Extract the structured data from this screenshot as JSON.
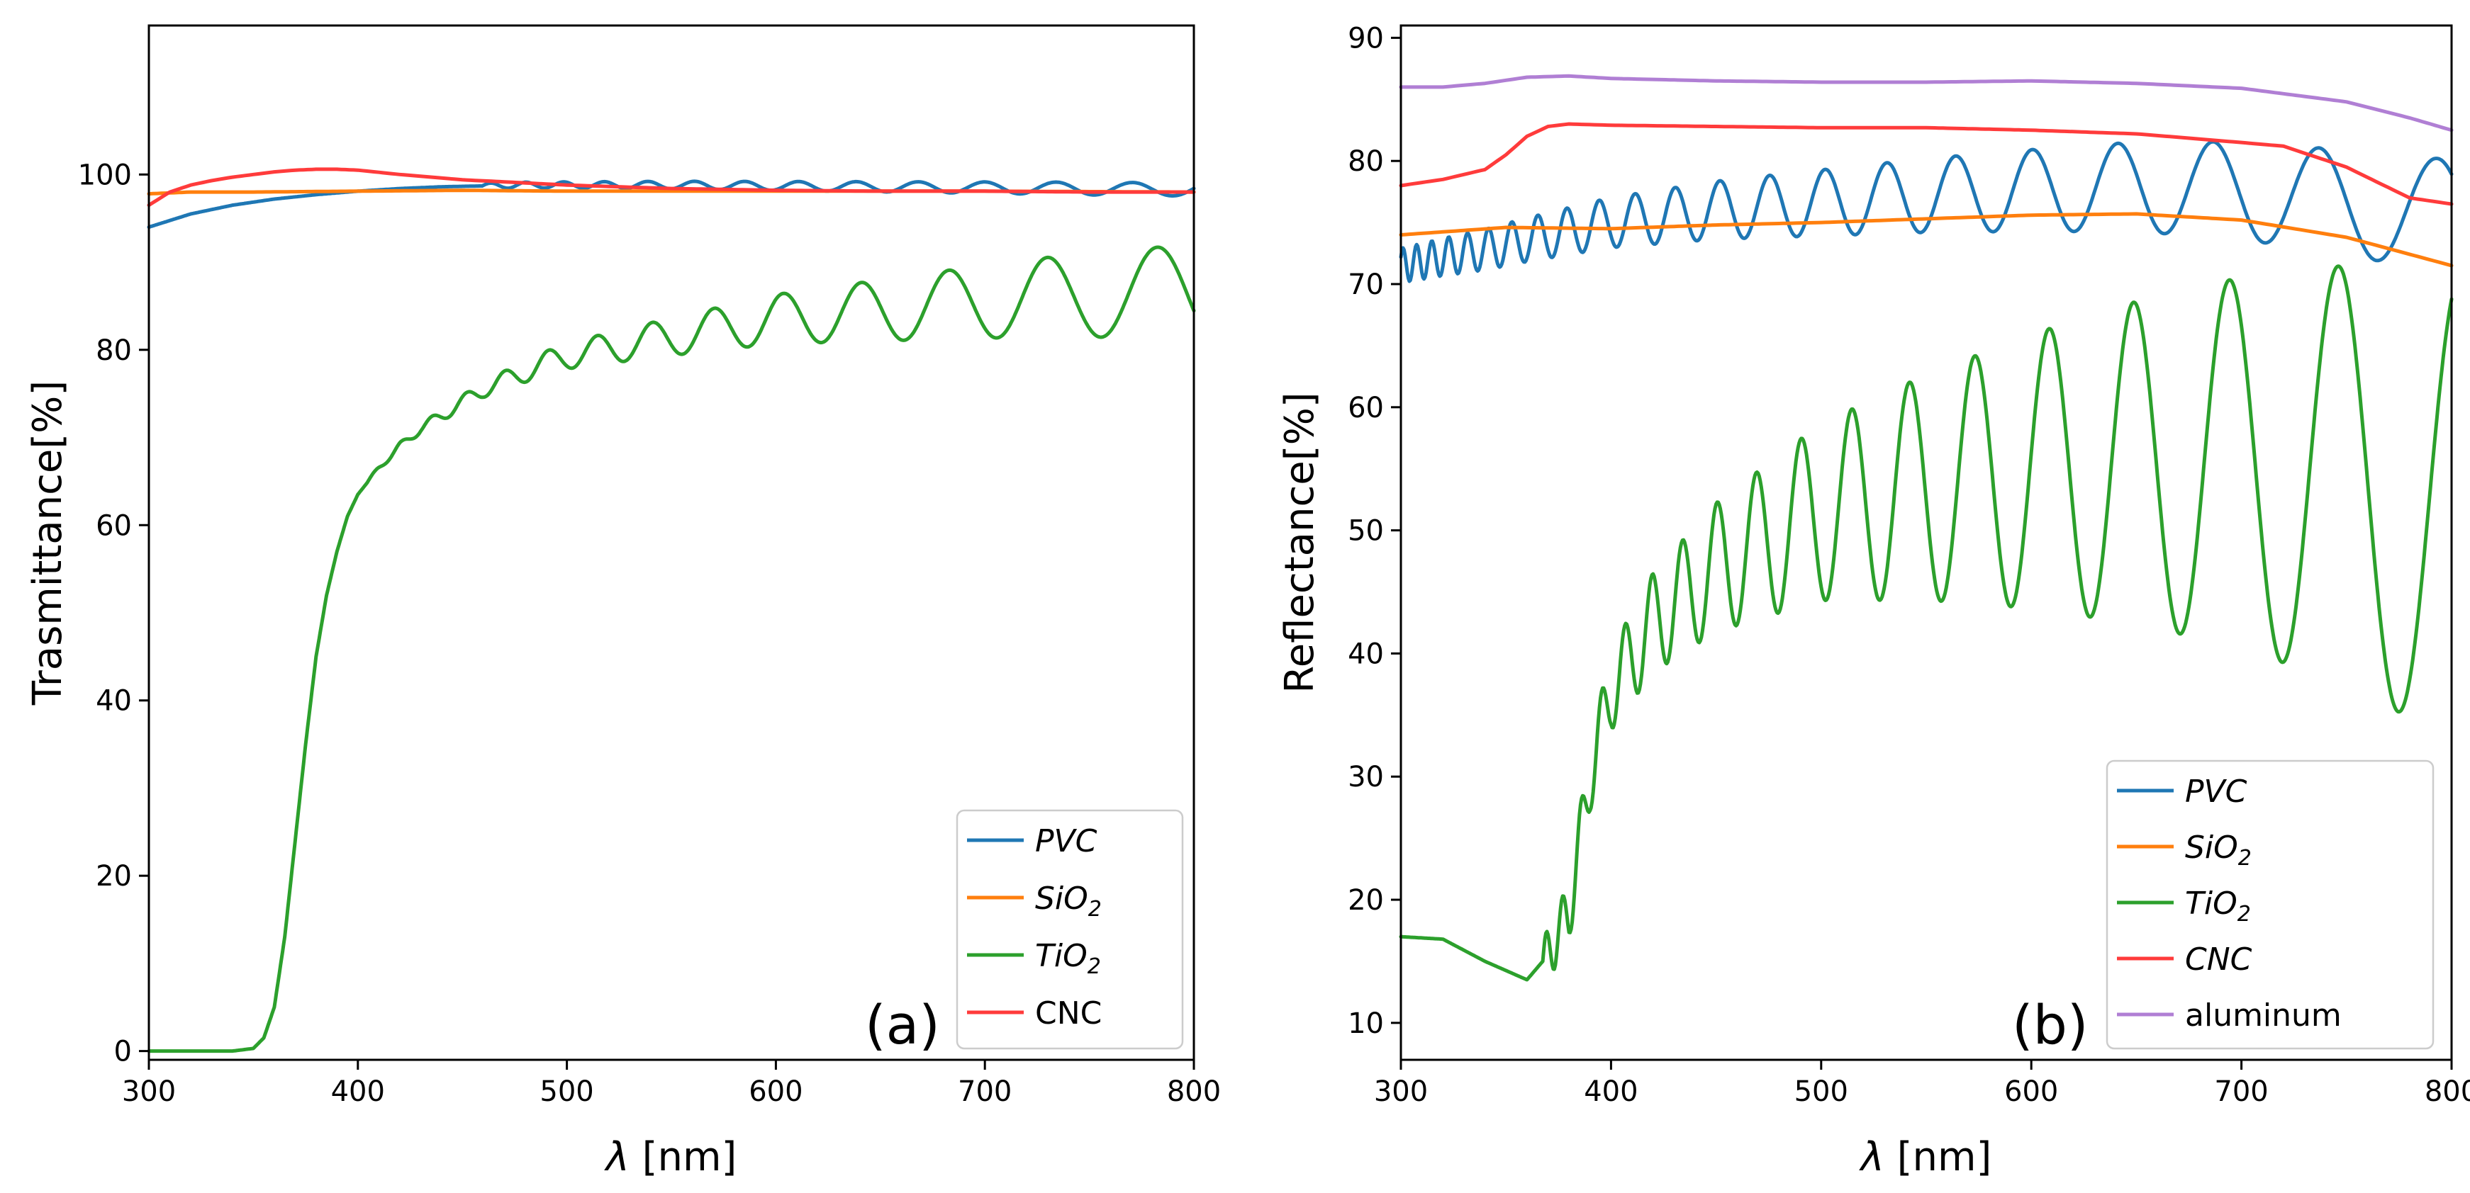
{
  "chart_data": [
    {
      "type": "line",
      "panel_label": "(a)",
      "xlabel_symbol": "λ",
      "xlabel_unit": " [nm]",
      "ylabel": "Trasmittance[%]",
      "xlim": [
        300,
        800
      ],
      "ylim": [
        -1,
        117
      ],
      "xticks": [
        "300",
        "400",
        "500",
        "600",
        "700",
        "800"
      ],
      "yticks": [
        "0",
        "20",
        "40",
        "60",
        "80",
        "100"
      ],
      "legend": {
        "placement": "lower-right",
        "entries": [
          {
            "series": "PVC",
            "main": "PVC",
            "sub": "",
            "italic": true
          },
          {
            "series": "SiO2",
            "main": "SiO",
            "sub": "2",
            "italic": true
          },
          {
            "series": "TiO2",
            "main": "TiO",
            "sub": "2",
            "italic": true
          },
          {
            "series": "CNC",
            "main": "CNC",
            "sub": "",
            "italic": false
          }
        ]
      },
      "series": [
        {
          "name": "PVC",
          "color": "#1f77b4",
          "x": [
            300,
            320,
            340,
            360,
            380,
            400,
            420,
            440,
            460,
            480,
            500,
            550,
            600,
            650,
            700,
            750,
            780,
            800
          ],
          "y": [
            94,
            95.5,
            96.5,
            97.2,
            97.7,
            98.1,
            98.4,
            98.6,
            98.7,
            98.8,
            98.8,
            98.8,
            98.7,
            98.6,
            98.5,
            98.4,
            98.3,
            98.4
          ],
          "osc": {
            "start": 460,
            "amp": [
              0.3,
              0.8
            ],
            "period": [
              16,
              40
            ]
          }
        },
        {
          "name": "SiO2",
          "color": "#ff7f0e",
          "x": [
            300,
            320,
            350,
            400,
            450,
            500,
            600,
            700,
            800
          ],
          "y": [
            97.8,
            98,
            98,
            98.1,
            98.2,
            98.1,
            98.1,
            98.1,
            98
          ]
        },
        {
          "name": "TiO2",
          "color": "#2ca02c",
          "x": [
            300,
            340,
            350,
            355,
            360,
            365,
            370,
            375,
            380,
            385,
            390,
            395,
            400,
            410,
            420,
            430,
            440,
            450,
            460,
            470,
            480,
            490,
            500,
            520,
            550,
            600,
            650,
            700,
            750,
            775,
            800
          ],
          "y": [
            0,
            0,
            0.3,
            1.5,
            5,
            13,
            24,
            35,
            45,
            52,
            57,
            61,
            63.5,
            66.5,
            69,
            71,
            72.5,
            74,
            75.5,
            76.5,
            77.5,
            78.5,
            79.3,
            80.2,
            81.5,
            83.5,
            84.5,
            85.5,
            86.3,
            86.5,
            86.3
          ],
          "osc": {
            "start": 405,
            "amp": [
              0.2,
              5.5
            ],
            "period": [
              12,
              58
            ]
          }
        },
        {
          "name": "CNC",
          "color": "#ff3b3b",
          "x": [
            300,
            310,
            320,
            330,
            340,
            350,
            360,
            370,
            380,
            390,
            400,
            420,
            450,
            500,
            550,
            600,
            650,
            700,
            750,
            800
          ],
          "y": [
            96.5,
            98,
            98.8,
            99.3,
            99.7,
            100,
            100.3,
            100.5,
            100.6,
            100.6,
            100.5,
            100,
            99.4,
            98.8,
            98.4,
            98.2,
            98.1,
            98.1,
            98,
            98
          ]
        }
      ]
    },
    {
      "type": "line",
      "panel_label": "(b)",
      "xlabel_symbol": "λ",
      "xlabel_unit": " [nm]",
      "ylabel": "Reflectance[%]",
      "xlim": [
        300,
        800
      ],
      "ylim": [
        7,
        91
      ],
      "xticks": [
        "300",
        "400",
        "500",
        "600",
        "700",
        "800"
      ],
      "yticks": [
        "10",
        "20",
        "30",
        "40",
        "50",
        "60",
        "70",
        "80",
        "90"
      ],
      "legend": {
        "placement": "lower-right",
        "entries": [
          {
            "series": "PVC",
            "main": "PVC",
            "sub": "",
            "italic": true
          },
          {
            "series": "SiO2",
            "main": "SiO",
            "sub": "2",
            "italic": true
          },
          {
            "series": "TiO2",
            "main": "TiO",
            "sub": "2",
            "italic": true
          },
          {
            "series": "CNC",
            "main": "CNC",
            "sub": "",
            "italic": true
          },
          {
            "series": "aluminum",
            "main": "aluminum",
            "sub": "",
            "italic": false
          }
        ]
      },
      "series": [
        {
          "name": "PVC",
          "color": "#1f77b4",
          "x": [
            300,
            320,
            340,
            360,
            380,
            400,
            450,
            500,
            550,
            600,
            650,
            700,
            750,
            800
          ],
          "y": [
            71.5,
            72.2,
            72.8,
            73.6,
            74.3,
            75,
            76,
            76.6,
            77.2,
            77.6,
            77.9,
            77.6,
            76.6,
            75.5
          ],
          "osc": {
            "start": 300,
            "amp": [
              1.4,
              4.6
            ],
            "period": [
              6,
              60
            ]
          }
        },
        {
          "name": "SiO2",
          "color": "#ff7f0e",
          "x": [
            300,
            350,
            400,
            450,
            500,
            550,
            600,
            650,
            700,
            750,
            800
          ],
          "y": [
            74,
            74.6,
            74.5,
            74.8,
            75,
            75.3,
            75.6,
            75.7,
            75.2,
            73.8,
            71.5
          ]
        },
        {
          "name": "TiO2",
          "color": "#2ca02c",
          "x": [
            300,
            320,
            340,
            360,
            370,
            380,
            390,
            400,
            420,
            450,
            500,
            550,
            600,
            650,
            700,
            750,
            800
          ],
          "y": [
            17,
            16.8,
            15,
            13.5,
            15.5,
            19,
            30,
            37,
            42.5,
            47,
            51.5,
            53.5,
            54.8,
            55.5,
            55.5,
            54.5,
            52
          ],
          "osc": {
            "start": 368,
            "amp": [
              2,
              19
            ],
            "period": [
              7,
              62
            ]
          }
        },
        {
          "name": "CNC",
          "color": "#ff3b3b",
          "x": [
            300,
            320,
            340,
            350,
            360,
            370,
            380,
            400,
            450,
            500,
            550,
            600,
            650,
            700,
            720,
            750,
            780,
            800
          ],
          "y": [
            78,
            78.5,
            79.3,
            80.5,
            82,
            82.8,
            83,
            82.9,
            82.8,
            82.7,
            82.7,
            82.5,
            82.2,
            81.5,
            81.2,
            79.5,
            77,
            76.5
          ]
        },
        {
          "name": "aluminum",
          "color": "#b07fd4",
          "x": [
            300,
            320,
            340,
            360,
            380,
            400,
            450,
            500,
            550,
            600,
            650,
            700,
            750,
            780,
            800
          ],
          "y": [
            86,
            86,
            86.3,
            86.8,
            86.9,
            86.7,
            86.5,
            86.4,
            86.4,
            86.5,
            86.3,
            85.9,
            84.8,
            83.5,
            82.5
          ]
        }
      ]
    }
  ]
}
